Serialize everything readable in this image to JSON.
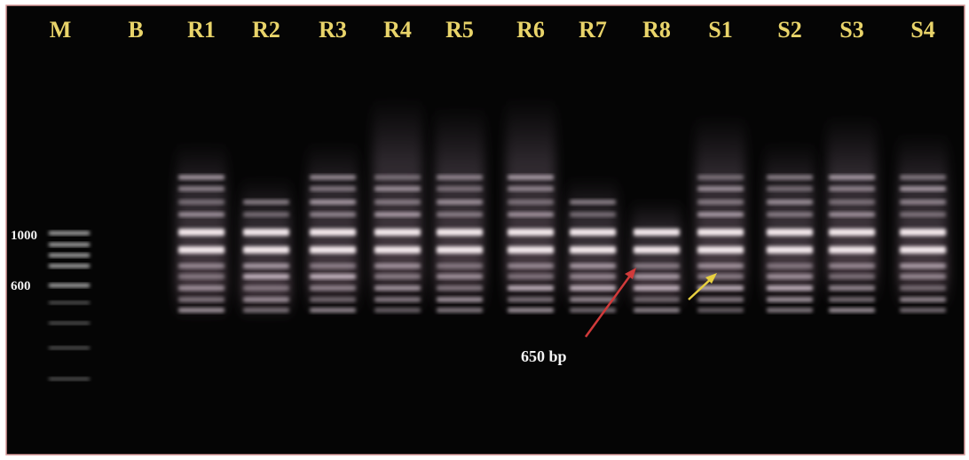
{
  "lanes": [
    "M",
    "B",
    "R1",
    "R2",
    "R3",
    "R4",
    "R5",
    "R6",
    "R7",
    "R8",
    "S1",
    "S2",
    "S3",
    "S4"
  ],
  "marker_labels": [
    "1000",
    "600"
  ],
  "annotation": "650 bp"
}
